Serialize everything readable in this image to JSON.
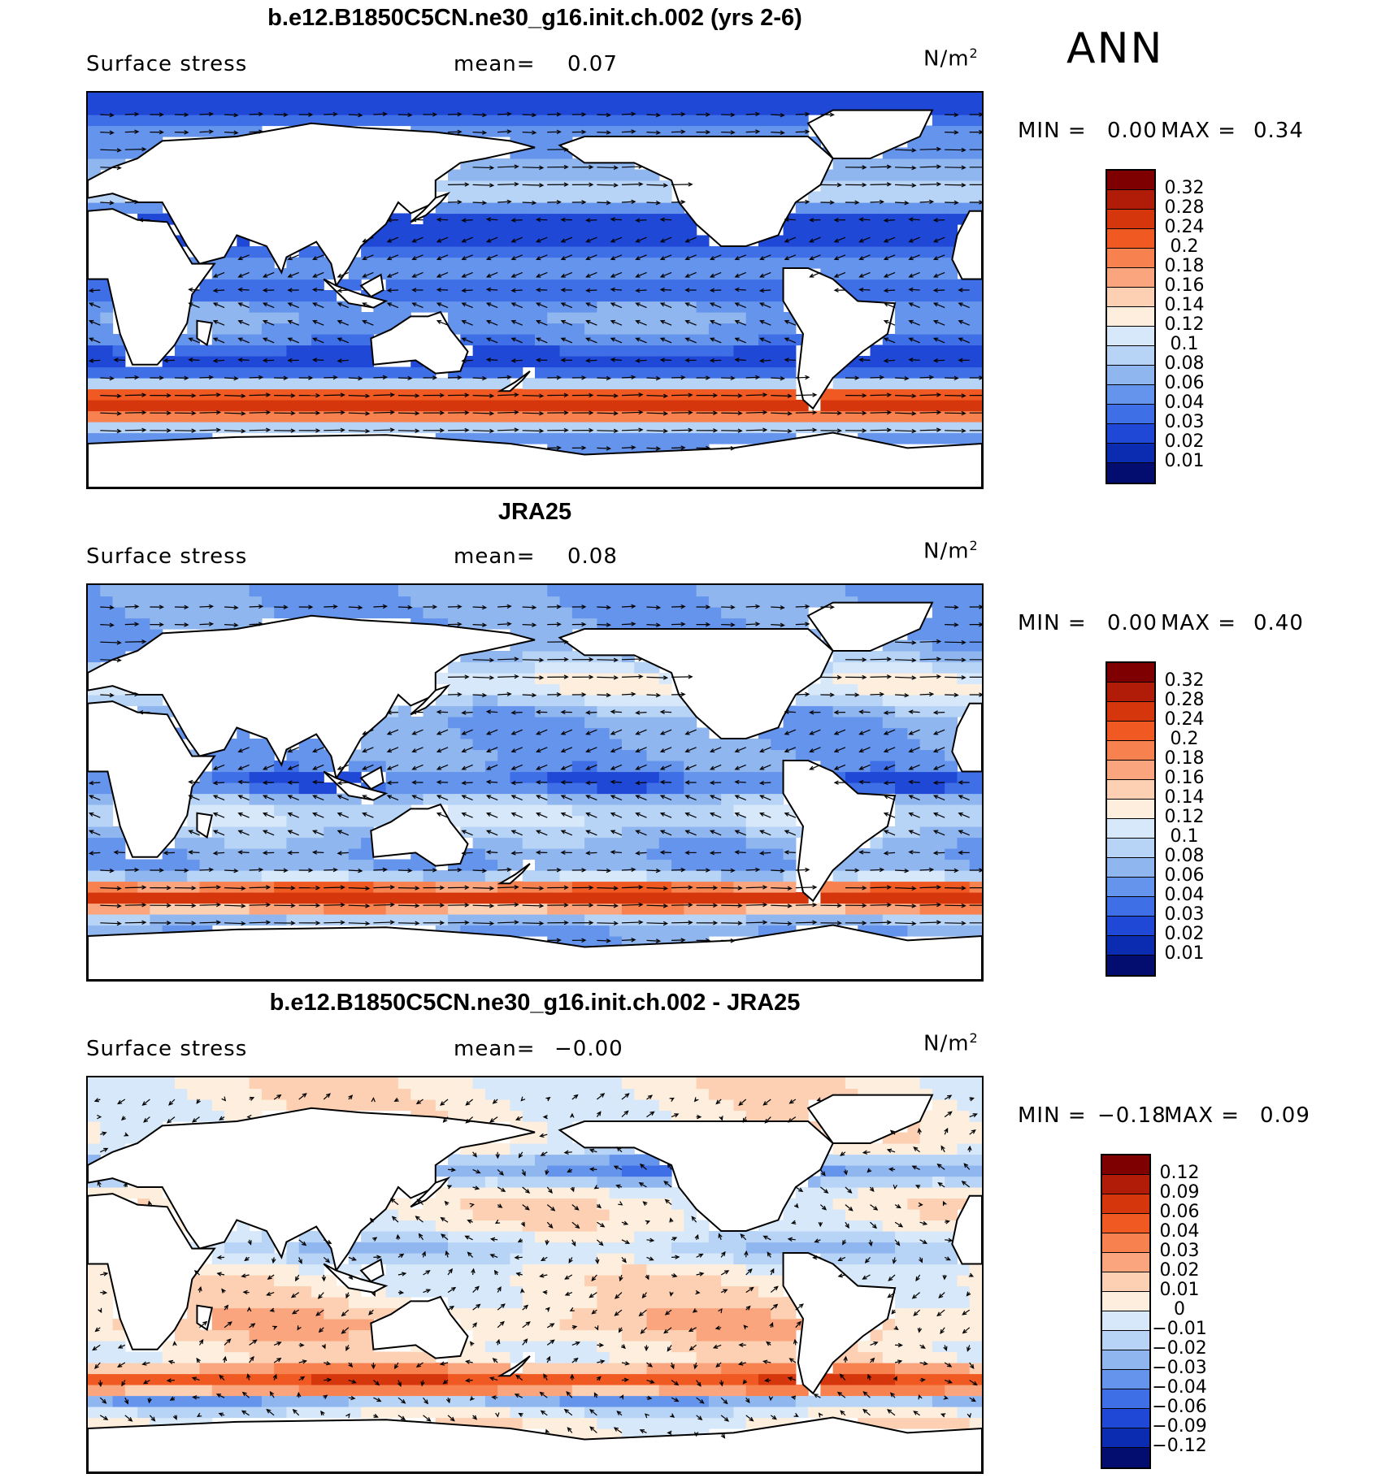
{
  "season": "ANN",
  "panels": [
    {
      "title": "b.e12.B1850C5CN.ne30_g16.init.ch.002 (yrs 2-6)",
      "variable": "Surface stress",
      "mean_label": "mean=",
      "mean_value": "0.07",
      "units": "N/m",
      "units_exp": "2",
      "min_label": "MIN =",
      "min_value": "0.00",
      "max_label": "MAX =",
      "max_value": "0.34",
      "field": "model",
      "colorbar": {
        "colors": [
          "#7f0000",
          "#b01c08",
          "#d6360c",
          "#f05a22",
          "#f88150",
          "#fba57e",
          "#fdd0b3",
          "#fdeede",
          "#d6e8f9",
          "#b7d4f6",
          "#8fb6ef",
          "#6594ec",
          "#3f6fe6",
          "#1f48d6",
          "#0b2bb1",
          "#020d6f"
        ],
        "labels": [
          "0.32",
          "0.28",
          "0.24",
          "0.2",
          "0.18",
          "0.16",
          "0.14",
          "0.12",
          "0.1",
          "0.08",
          "0.06",
          "0.04",
          "0.03",
          "0.02",
          "0.01"
        ]
      }
    },
    {
      "title": "JRA25",
      "variable": "Surface stress",
      "mean_label": "mean=",
      "mean_value": "0.08",
      "units": "N/m",
      "units_exp": "2",
      "min_label": "MIN =",
      "min_value": "0.00",
      "max_label": "MAX =",
      "max_value": "0.40",
      "field": "obs",
      "colorbar": {
        "colors": [
          "#7f0000",
          "#b01c08",
          "#d6360c",
          "#f05a22",
          "#f88150",
          "#fba57e",
          "#fdd0b3",
          "#fdeede",
          "#d6e8f9",
          "#b7d4f6",
          "#8fb6ef",
          "#6594ec",
          "#3f6fe6",
          "#1f48d6",
          "#0b2bb1",
          "#020d6f"
        ],
        "labels": [
          "0.32",
          "0.28",
          "0.24",
          "0.2",
          "0.18",
          "0.16",
          "0.14",
          "0.12",
          "0.1",
          "0.08",
          "0.06",
          "0.04",
          "0.03",
          "0.02",
          "0.01"
        ]
      }
    },
    {
      "title": "b.e12.B1850C5CN.ne30_g16.init.ch.002 - JRA25",
      "variable": "Surface stress",
      "mean_label": "mean=",
      "mean_value": "−0.00",
      "units": "N/m",
      "units_exp": "2",
      "min_label": "MIN =",
      "min_value": "−0.18",
      "max_label": "MAX =",
      "max_value": "0.09",
      "field": "diff",
      "colorbar": {
        "colors": [
          "#7f0000",
          "#b01c08",
          "#d6360c",
          "#f05a22",
          "#f88150",
          "#fba57e",
          "#fdd0b3",
          "#fdeede",
          "#d6e8f9",
          "#b7d4f6",
          "#8fb6ef",
          "#6594ec",
          "#3f6fe6",
          "#1f48d6",
          "#0b2bb1",
          "#020d6f"
        ],
        "labels": [
          "0.12",
          "0.09",
          "0.06",
          "0.04",
          "0.03",
          "0.02",
          "0.01",
          "0",
          "−0.01",
          "−0.02",
          "−0.03",
          "−0.04",
          "−0.06",
          "−0.09",
          "−0.12"
        ]
      }
    }
  ]
}
